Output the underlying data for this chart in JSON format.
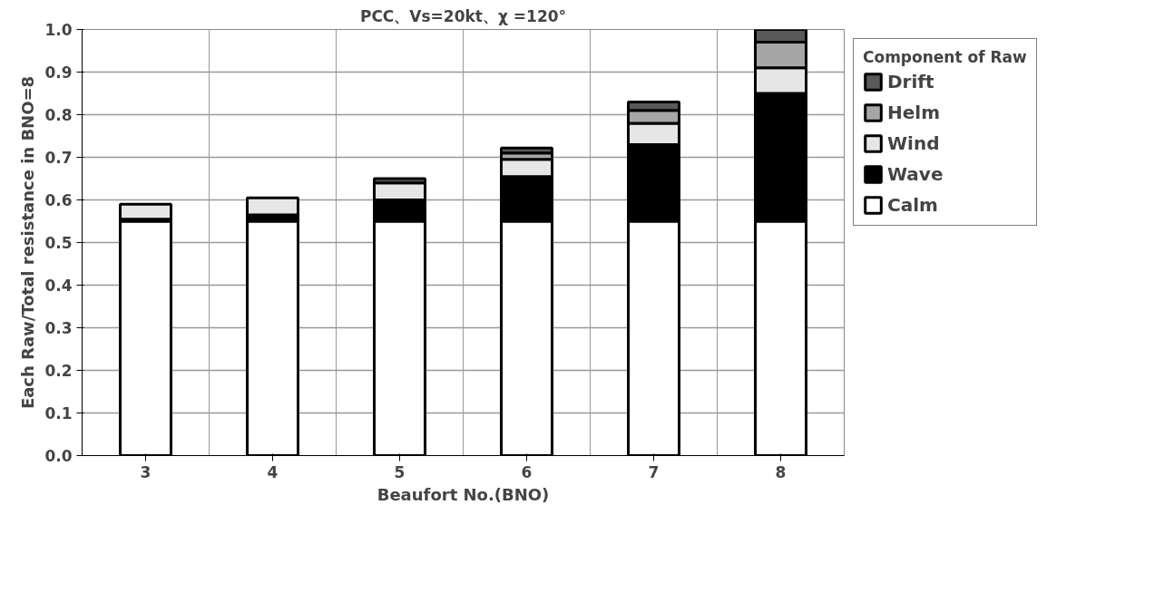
{
  "chart_data": {
    "type": "bar",
    "stacked": true,
    "title": "PCC、Vs=20kt、χ =120°",
    "xlabel": "Beaufort No.(BNO)",
    "ylabel": "Each Raw/Total resistance in BNO=8",
    "legend_title": "Component of Raw",
    "categories": [
      "3",
      "4",
      "5",
      "6",
      "7",
      "8"
    ],
    "series": [
      {
        "name": "Calm",
        "color": "#ffffff",
        "values": [
          0.55,
          0.55,
          0.55,
          0.55,
          0.55,
          0.55
        ]
      },
      {
        "name": "Wave",
        "color": "#000000",
        "values": [
          0.005,
          0.015,
          0.05,
          0.105,
          0.18,
          0.3
        ]
      },
      {
        "name": "Wind",
        "color": "#e6e6e6",
        "values": [
          0.035,
          0.04,
          0.04,
          0.04,
          0.05,
          0.06
        ]
      },
      {
        "name": "Helm",
        "color": "#a6a6a6",
        "values": [
          0,
          0,
          0,
          0.015,
          0.03,
          0.06
        ]
      },
      {
        "name": "Drift",
        "color": "#595959",
        "values": [
          0,
          0,
          0.01,
          0.012,
          0.02,
          0.03
        ]
      }
    ],
    "ylim": [
      0,
      1.0
    ],
    "yticks": [
      {
        "value": 0,
        "label": "0.0"
      },
      0.1,
      0.2,
      0.3,
      0.4,
      0.5,
      0.6,
      0.7,
      0.8,
      0.9,
      {
        "value": 1.0,
        "label": "1.0"
      }
    ],
    "grid": true,
    "legend": "right"
  }
}
